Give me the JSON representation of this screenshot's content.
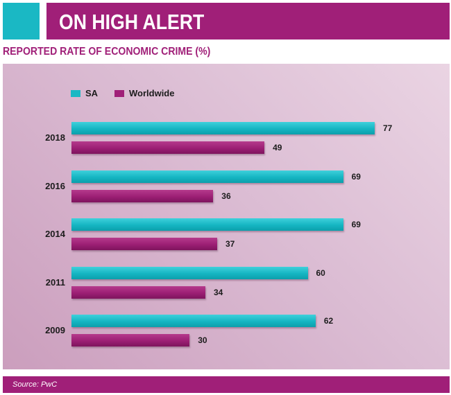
{
  "header": {
    "title": "ON HIGH ALERT"
  },
  "chart_data": {
    "type": "bar",
    "orientation": "horizontal",
    "title": "REPORTED RATE OF ECONOMIC CRIME (%)",
    "categories": [
      "2018",
      "2016",
      "2014",
      "2011",
      "2009"
    ],
    "series": [
      {
        "name": "SA",
        "values": [
          77,
          69,
          69,
          60,
          62
        ],
        "color": "#1ab8c4"
      },
      {
        "name": "Worldwide",
        "values": [
          49,
          36,
          37,
          34,
          30
        ],
        "color": "#a01f78"
      }
    ],
    "legend_position": "top-left",
    "grid": false
  },
  "footer": {
    "source": "Source: PwC"
  },
  "colors": {
    "accent": "#a01f78",
    "teal": "#1ab8c4",
    "panel": "#dbbcd3"
  }
}
